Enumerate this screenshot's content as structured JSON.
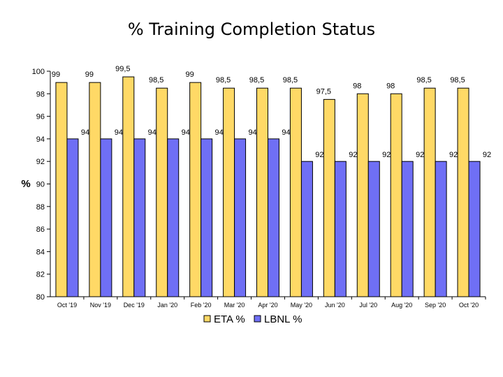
{
  "chart_data": {
    "type": "bar",
    "title": "% Training Completion Status",
    "xlabel": "",
    "ylabel": "%",
    "ylim": [
      80,
      100
    ],
    "yticks": [
      "80",
      "82",
      "84",
      "86",
      "88",
      "90",
      "92",
      "94",
      "96",
      "98",
      "100"
    ],
    "categories": [
      "Oct '19",
      "Nov '19",
      "Dec '19",
      "Jan '20",
      "Feb '20",
      "Mar '20",
      "Apr '20",
      "May '20",
      "Jun '20",
      "Jul '20",
      "Aug '20",
      "Sep '20",
      "Oct '20"
    ],
    "series": [
      {
        "name": "ETA %",
        "color": "#FFD966",
        "values": [
          99,
          99,
          99.5,
          98.5,
          99,
          98.5,
          98.5,
          98.5,
          97.5,
          98,
          98,
          98.5,
          98.5
        ],
        "labels": [
          "99",
          "99",
          "99,5",
          "98,5",
          "99",
          "98,5",
          "98,5",
          "98,5",
          "97,5",
          "98",
          "98",
          "98,5",
          "98,5"
        ]
      },
      {
        "name": "LBNL %",
        "color": "#6F6FF5",
        "values": [
          94,
          94,
          94,
          94,
          94,
          94,
          94,
          92,
          92,
          92,
          92,
          92,
          92
        ],
        "labels": [
          "94",
          "94",
          "94",
          "94",
          "94",
          "94",
          "94",
          "92",
          "92",
          "92",
          "92",
          "92",
          "92"
        ]
      }
    ],
    "legend": "bottom",
    "grid": false
  }
}
